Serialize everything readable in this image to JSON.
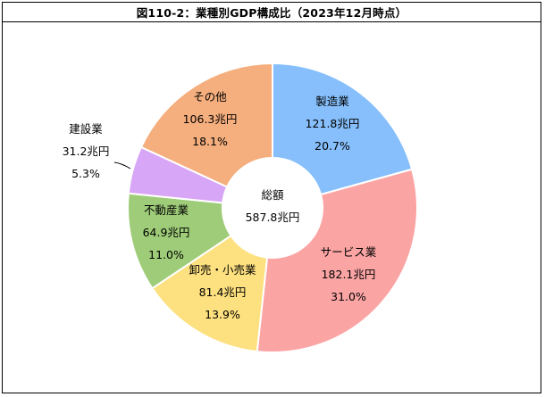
{
  "chart_data": {
    "type": "pie",
    "title": "図110-2：業種別GDP構成比（2023年12月時点）",
    "center_label": {
      "line1": "総額",
      "line2": "587.8兆円"
    },
    "slices": [
      {
        "name": "製造業",
        "value_text": "121.8兆円",
        "percent_text": "20.7%",
        "percent": 20.7,
        "color": "#86BFFB"
      },
      {
        "name": "サービス業",
        "value_text": "182.1兆円",
        "percent_text": "31.0%",
        "percent": 31.0,
        "color": "#FBA4A4"
      },
      {
        "name": "卸売・小売業",
        "value_text": "81.4兆円",
        "percent_text": "13.9%",
        "percent": 13.9,
        "color": "#FDE07F"
      },
      {
        "name": "不動産業",
        "value_text": "64.9兆円",
        "percent_text": "11.0%",
        "percent": 11.0,
        "color": "#9ECC78"
      },
      {
        "name": "建設業",
        "value_text": "31.2兆円",
        "percent_text": "5.3%",
        "percent": 5.3,
        "color": "#D8A6F6"
      },
      {
        "name": "その他",
        "value_text": "106.3兆円",
        "percent_text": "18.1%",
        "percent": 18.1,
        "color": "#F5AE7D"
      }
    ]
  }
}
